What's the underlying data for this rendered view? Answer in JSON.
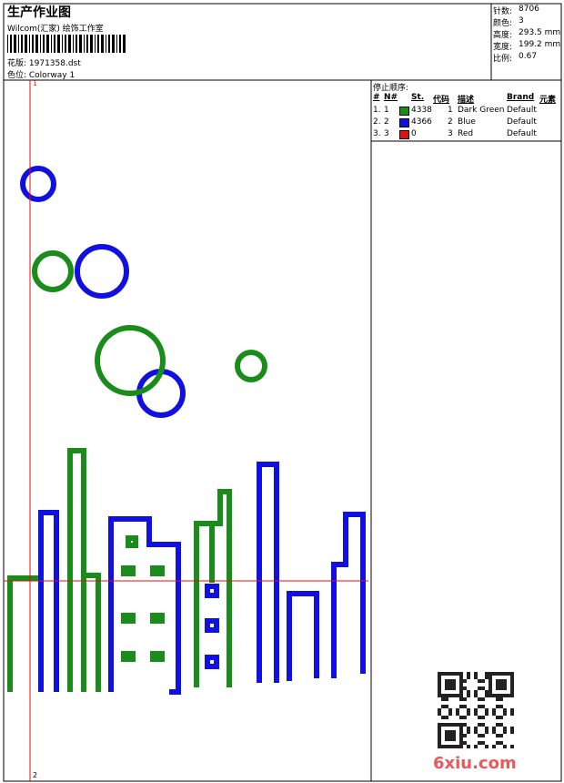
{
  "header": {
    "title": "生产作业图",
    "company": "Wilcom(汇家) 绘饰工作室",
    "design": "花版: 1971358.dst",
    "colorway": "色位: Colorway 1"
  },
  "info": [
    {
      "label": "针数:",
      "value": "8706"
    },
    {
      "label": "颜色:",
      "value": "3"
    },
    {
      "label": "高度:",
      "value": "293.5 mm"
    },
    {
      "label": "宽度:",
      "value": "199.2 mm"
    },
    {
      "label": "比例:",
      "value": "0.67"
    }
  ],
  "stop_sequence": {
    "title": "停止顺序:",
    "columns": [
      "#",
      "N#",
      "St.",
      "代码",
      "描述",
      "Brand",
      "元素"
    ],
    "rows": [
      {
        "num": "1.",
        "n": "1",
        "color": "#1a8c1a",
        "stitches": "4338",
        "code": "1",
        "description": "Dark Green",
        "brand": "Default"
      },
      {
        "num": "2.",
        "n": "2",
        "color": "#1010e0",
        "stitches": "4366",
        "code": "2",
        "description": "Blue",
        "brand": "Default"
      },
      {
        "num": "3.",
        "n": "3",
        "color": "#e01010",
        "stitches": "0",
        "code": "3",
        "description": "Red",
        "brand": "Default"
      }
    ]
  },
  "markers": {
    "top": "1",
    "bottom": "2"
  },
  "watermark": "6xiu.com"
}
